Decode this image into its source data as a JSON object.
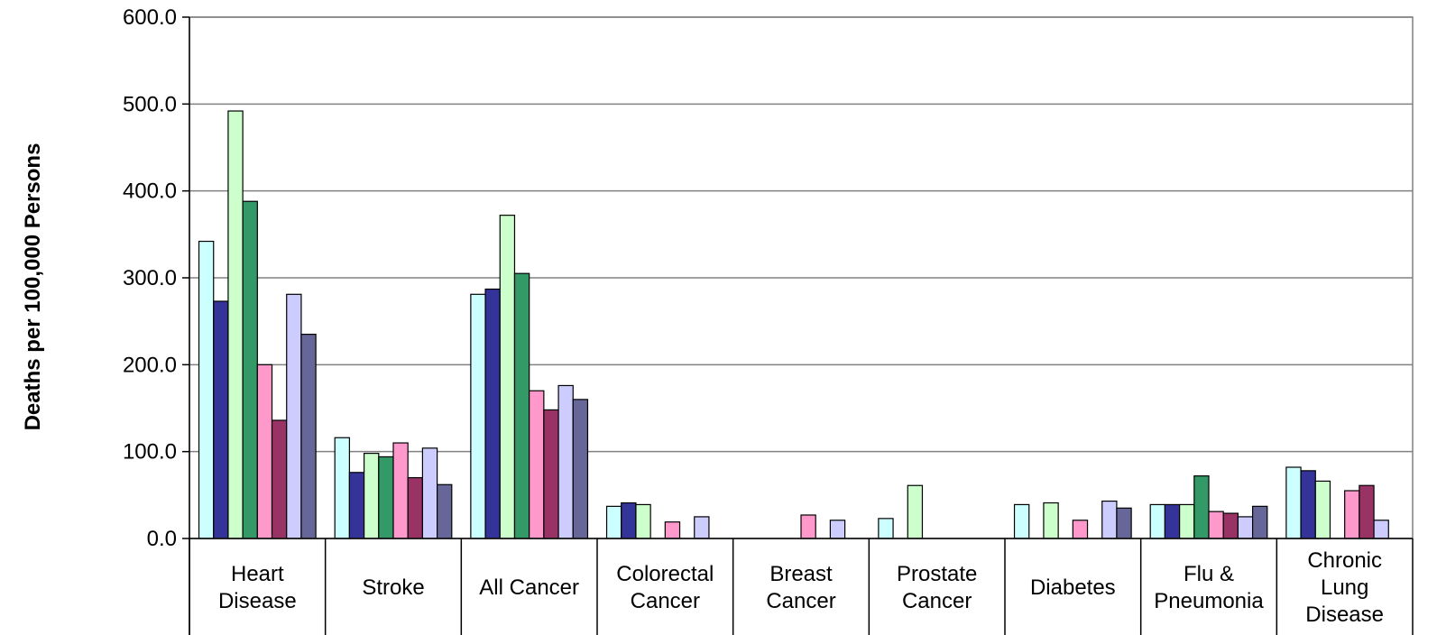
{
  "chart_data": {
    "type": "bar",
    "title": "",
    "xlabel": "",
    "ylabel": "Deaths per 100,000 Persons",
    "ylim": [
      0,
      600
    ],
    "yticks": [
      "0.0",
      "100.0",
      "200.0",
      "300.0",
      "400.0",
      "500.0",
      "600.0"
    ],
    "grid": true,
    "legend": "none",
    "categories": [
      [
        "Heart",
        "Disease"
      ],
      [
        "Stroke"
      ],
      [
        "All Cancer"
      ],
      [
        "Colorectal",
        "Cancer"
      ],
      [
        "Breast",
        "Cancer"
      ],
      [
        "Prostate",
        "Cancer"
      ],
      [
        "Diabetes"
      ],
      [
        "Flu &",
        "Pneumonia"
      ],
      [
        "Chronic",
        "Lung",
        "Disease"
      ]
    ],
    "series": [
      {
        "color": "#ccffff",
        "values": [
          342,
          116,
          281,
          37,
          0,
          23,
          39,
          39,
          82
        ]
      },
      {
        "color": "#333399",
        "values": [
          273,
          76,
          287,
          41,
          0,
          0,
          0,
          39,
          78
        ]
      },
      {
        "color": "#ccffcc",
        "values": [
          492,
          98,
          372,
          39,
          0,
          61,
          41,
          39,
          66
        ]
      },
      {
        "color": "#339966",
        "values": [
          388,
          94,
          305,
          0,
          0,
          0,
          0,
          72,
          0
        ]
      },
      {
        "color": "#ff99cc",
        "values": [
          200,
          110,
          170,
          19,
          27,
          0,
          21,
          31,
          55
        ]
      },
      {
        "color": "#993366",
        "values": [
          136,
          70,
          148,
          0,
          0,
          0,
          0,
          29,
          61
        ]
      },
      {
        "color": "#ccccff",
        "values": [
          281,
          104,
          176,
          25,
          21,
          0,
          43,
          25,
          21
        ]
      },
      {
        "color": "#666699",
        "values": [
          235,
          62,
          160,
          0,
          0,
          0,
          35,
          37,
          0
        ]
      }
    ]
  }
}
